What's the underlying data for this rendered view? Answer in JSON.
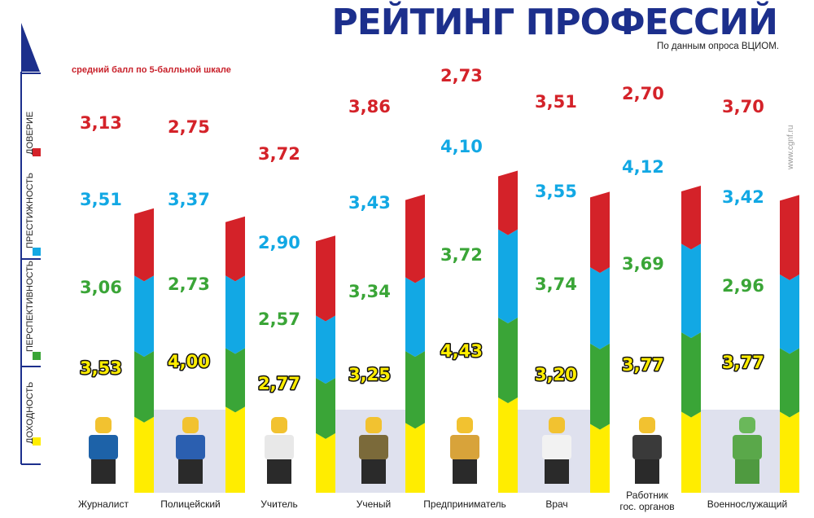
{
  "title": "РЕЙТИНГ ПРОФЕССИЙ",
  "subtitle": "По данным опроса ВЦИОМ.",
  "scale_note": "средний балл по 5-балльной шкале",
  "watermark": "www.cgnf.ru",
  "colors": {
    "title": "#1c2f8c",
    "doverie": "#d42229",
    "prestizhnost": "#12a8e4",
    "perspektivnost": "#3aa537",
    "dohodnost": "#ffed00",
    "axis": "#1c2f8c"
  },
  "chart_data": {
    "type": "bar",
    "stacked": true,
    "categories": [
      "Журналист",
      "Полицейский",
      "Учитель",
      "Ученый",
      "Предприниматель",
      "Врач",
      "Работник гос. органов",
      "Военнослужащий"
    ],
    "series": [
      {
        "name": "ДОХОДНОСТЬ",
        "values": [
          3.53,
          4.0,
          2.77,
          3.25,
          4.43,
          3.2,
          3.77,
          3.77
        ],
        "labels": [
          "3,53",
          "4,00",
          "2,77",
          "3,25",
          "4,43",
          "3,20",
          "3,77",
          "3,77"
        ]
      },
      {
        "name": "ПЕРСПЕКТИВНОСТЬ",
        "values": [
          3.06,
          2.73,
          2.57,
          3.34,
          3.72,
          3.74,
          3.69,
          2.96
        ],
        "labels": [
          "3,06",
          "2,73",
          "2,57",
          "3,34",
          "3,72",
          "3,74",
          "3,69",
          "2,96"
        ]
      },
      {
        "name": "ПРЕСТИЖНОСТЬ",
        "values": [
          3.51,
          3.37,
          2.9,
          3.43,
          4.1,
          3.55,
          4.12,
          3.42
        ],
        "labels": [
          "3,51",
          "3,37",
          "2,90",
          "3,43",
          "4,10",
          "3,55",
          "4,12",
          "3,42"
        ]
      },
      {
        "name": "ДОВЕРИЕ",
        "values": [
          3.13,
          2.75,
          3.72,
          3.86,
          2.73,
          3.51,
          2.7,
          3.7
        ],
        "labels": [
          "3,13",
          "2,75",
          "3,72",
          "3,86",
          "2,73",
          "3,51",
          "2,70",
          "3,70"
        ]
      }
    ]
  }
}
